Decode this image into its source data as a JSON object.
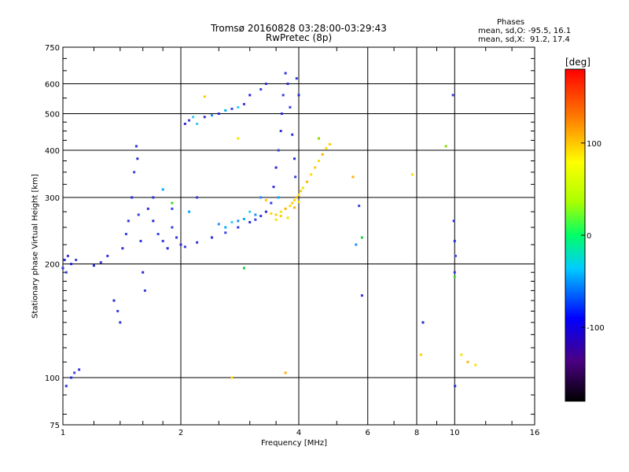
{
  "chart_data": {
    "type": "scatter",
    "title": "Tromsø 20160828 03:28:00-03:29:43",
    "subtitle": "RwPretec (8p)",
    "stats": {
      "heading": "Phases",
      "line_o": "mean, sd,O: -95.5, 16.1",
      "line_x": "mean, sd,X:  91.2, 17.4"
    },
    "xlabel": "Frequency [MHz]",
    "ylabel": "Stationary phase Virtual Height [km]",
    "x_scale": "log",
    "y_scale": "log",
    "xlim": [
      1,
      16
    ],
    "ylim": [
      75,
      750
    ],
    "x_ticks": [
      1,
      2,
      4,
      6,
      8,
      10,
      16
    ],
    "y_ticks": [
      75,
      100,
      200,
      300,
      400,
      500,
      600,
      750
    ],
    "grid": true,
    "colorbar": {
      "label": "[deg]",
      "range": [
        -180,
        180
      ],
      "ticks": [
        100,
        0,
        -100
      ]
    },
    "series": [
      {
        "points": [
          [
            1.0,
            195
          ],
          [
            1.01,
            205
          ],
          [
            1.02,
            190
          ],
          [
            1.03,
            210
          ],
          [
            1.05,
            200
          ],
          [
            1.08,
            205
          ],
          [
            1.02,
            95
          ],
          [
            1.05,
            100
          ],
          [
            1.07,
            103
          ],
          [
            1.1,
            105
          ],
          [
            1.2,
            198
          ],
          [
            1.25,
            202
          ],
          [
            1.3,
            210
          ],
          [
            1.35,
            160
          ],
          [
            1.38,
            150
          ],
          [
            1.4,
            140
          ],
          [
            1.42,
            220
          ],
          [
            1.45,
            240
          ],
          [
            1.47,
            260
          ],
          [
            1.5,
            300
          ],
          [
            1.52,
            350
          ],
          [
            1.54,
            410
          ],
          [
            1.55,
            380
          ],
          [
            1.56,
            270
          ],
          [
            1.58,
            230
          ],
          [
            1.6,
            190
          ],
          [
            1.62,
            170
          ],
          [
            1.65,
            280
          ],
          [
            1.7,
            260
          ],
          [
            1.75,
            240
          ],
          [
            1.8,
            230
          ],
          [
            1.85,
            220
          ],
          [
            1.9,
            250
          ],
          [
            1.95,
            235
          ],
          [
            2.0,
            225
          ],
          [
            2.05,
            222
          ],
          [
            2.2,
            228
          ],
          [
            2.4,
            235
          ],
          [
            2.6,
            242
          ],
          [
            2.8,
            250
          ],
          [
            3.0,
            258
          ],
          [
            3.1,
            262
          ],
          [
            3.2,
            268
          ],
          [
            3.3,
            275
          ],
          [
            3.4,
            290
          ],
          [
            3.45,
            320
          ],
          [
            3.5,
            360
          ],
          [
            3.55,
            400
          ],
          [
            3.6,
            450
          ],
          [
            3.62,
            500
          ],
          [
            3.65,
            560
          ],
          [
            3.7,
            640
          ],
          [
            3.75,
            600
          ],
          [
            3.8,
            520
          ],
          [
            3.85,
            440
          ],
          [
            3.9,
            380
          ],
          [
            3.92,
            340
          ],
          [
            3.95,
            620
          ],
          [
            2.05,
            470
          ],
          [
            2.1,
            480
          ],
          [
            2.3,
            490
          ],
          [
            2.5,
            500
          ],
          [
            2.7,
            515
          ],
          [
            2.9,
            530
          ],
          [
            3.0,
            560
          ],
          [
            3.2,
            580
          ],
          [
            3.3,
            600
          ],
          [
            1.7,
            300
          ],
          [
            1.9,
            280
          ],
          [
            2.2,
            300
          ],
          [
            4.0,
            560
          ],
          [
            5.7,
            285
          ],
          [
            5.8,
            165
          ],
          [
            8.3,
            140
          ],
          [
            9.9,
            560
          ],
          [
            9.95,
            260
          ],
          [
            10.0,
            230
          ],
          [
            10.05,
            210
          ],
          [
            10.0,
            190
          ],
          [
            10.02,
            95
          ]
        ],
        "colors": [
          "#3333dd",
          "#2a2ad8",
          "#3a40e0"
        ]
      },
      {
        "points": [
          [
            2.5,
            255
          ],
          [
            2.6,
            250
          ],
          [
            2.7,
            258
          ],
          [
            2.8,
            260
          ],
          [
            2.9,
            263
          ],
          [
            3.0,
            275
          ],
          [
            3.1,
            270
          ],
          [
            2.1,
            275
          ],
          [
            2.15,
            490
          ],
          [
            2.4,
            495
          ],
          [
            2.6,
            510
          ],
          [
            2.8,
            520
          ],
          [
            3.2,
            300
          ],
          [
            1.8,
            315
          ],
          [
            2.2,
            470
          ],
          [
            5.6,
            225
          ],
          [
            3.55,
            300
          ]
        ],
        "colors": [
          "#1e90ff",
          "#00aaff",
          "#33ccee"
        ]
      },
      {
        "points": [
          [
            3.4,
            272
          ],
          [
            3.5,
            270
          ],
          [
            3.6,
            275
          ],
          [
            3.7,
            280
          ],
          [
            3.8,
            285
          ],
          [
            3.85,
            290
          ],
          [
            3.9,
            295
          ],
          [
            3.95,
            300
          ],
          [
            4.0,
            305
          ],
          [
            4.05,
            312
          ],
          [
            4.1,
            318
          ],
          [
            4.2,
            330
          ],
          [
            4.3,
            345
          ],
          [
            4.4,
            360
          ],
          [
            4.5,
            375
          ],
          [
            4.6,
            390
          ],
          [
            4.7,
            405
          ],
          [
            4.8,
            415
          ],
          [
            3.75,
            265
          ],
          [
            3.9,
            282
          ],
          [
            4.0,
            292
          ],
          [
            3.6,
            268
          ],
          [
            3.5,
            262
          ],
          [
            5.5,
            340
          ],
          [
            7.8,
            345
          ],
          [
            2.3,
            555
          ],
          [
            2.8,
            430
          ],
          [
            3.7,
            103
          ],
          [
            2.7,
            100
          ],
          [
            8.2,
            115
          ],
          [
            10.4,
            115
          ],
          [
            10.8,
            110
          ],
          [
            11.3,
            108
          ],
          [
            3.3,
            295
          ]
        ],
        "colors": [
          "#ffdd00",
          "#ffcc00",
          "#f2e600",
          "#ffb300"
        ]
      },
      {
        "points": [
          [
            2.9,
            195
          ],
          [
            1.9,
            290
          ],
          [
            9.5,
            410
          ],
          [
            5.8,
            235
          ],
          [
            10.0,
            185
          ],
          [
            4.5,
            430
          ]
        ],
        "colors": [
          "#22cc44",
          "#44dd22",
          "#88dd00"
        ]
      }
    ]
  }
}
